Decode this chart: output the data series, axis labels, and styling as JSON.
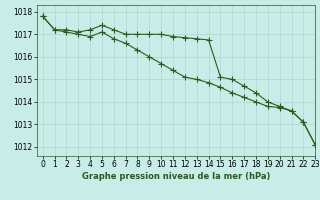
{
  "line1_x": [
    0,
    1,
    2,
    3,
    4,
    5,
    6,
    7,
    8,
    9,
    10,
    11,
    12,
    13,
    14,
    15,
    16,
    17,
    18,
    19,
    20,
    21,
    22,
    23
  ],
  "line1_y": [
    1017.8,
    1017.2,
    1017.2,
    1017.1,
    1017.2,
    1017.4,
    1017.2,
    1017.0,
    1017.0,
    1017.0,
    1017.0,
    1016.9,
    1016.85,
    1016.8,
    1016.75,
    1015.1,
    1015.0,
    1014.7,
    1014.4,
    1014.0,
    1013.8,
    1013.6,
    1013.1,
    1012.1
  ],
  "line2_x": [
    0,
    1,
    2,
    3,
    4,
    5,
    6,
    7,
    8,
    9,
    10,
    11,
    12,
    13,
    14,
    15,
    16,
    17,
    18,
    19,
    20,
    21,
    22,
    23
  ],
  "line2_y": [
    1017.8,
    1017.2,
    1017.1,
    1017.0,
    1016.9,
    1017.1,
    1016.8,
    1016.6,
    1016.3,
    1016.0,
    1015.7,
    1015.4,
    1015.1,
    1015.0,
    1014.85,
    1014.65,
    1014.4,
    1014.2,
    1014.0,
    1013.8,
    1013.75,
    1013.6,
    1013.1,
    1012.1
  ],
  "line_color": "#2d5a1b",
  "background_color": "#c8ece8",
  "grid_color": "#a8d8d0",
  "xlabel": "Graphe pression niveau de la mer (hPa)",
  "xlim": [
    -0.5,
    23
  ],
  "ylim": [
    1011.6,
    1018.3
  ],
  "yticks": [
    1012,
    1013,
    1014,
    1015,
    1016,
    1017,
    1018
  ],
  "xticks": [
    0,
    1,
    2,
    3,
    4,
    5,
    6,
    7,
    8,
    9,
    10,
    11,
    12,
    13,
    14,
    15,
    16,
    17,
    18,
    19,
    20,
    21,
    22,
    23
  ],
  "marker_size": 4,
  "line_width": 0.8,
  "tick_fontsize": 5.5,
  "xlabel_fontsize": 6.0
}
